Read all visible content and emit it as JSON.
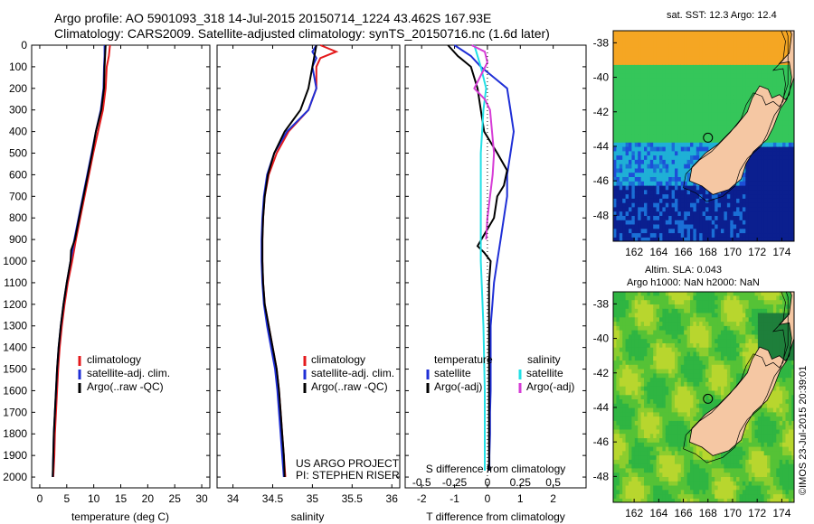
{
  "header": {
    "line1": "Argo profile: AO 5901093_318 14-Jul-2015 20150714_1224 43.462S 167.93E",
    "line2": "Climatology: CARS2009. Satellite-adjusted climatology: synTS_20150716.nc (1.6d later)"
  },
  "colors": {
    "climatology": "#e41a1c",
    "satellite": "#1f2fd6",
    "argo": "#000000",
    "cyan": "#22e0e6",
    "magenta": "#d63cd6"
  },
  "chart_data": [
    {
      "type": "line",
      "name": "temperature",
      "xlabel": "temperature (deg C)",
      "ylim": [
        0,
        2050
      ],
      "xlim": [
        -1.5,
        31.5
      ],
      "xticks": [
        "0",
        "5",
        "10",
        "15",
        "20",
        "25",
        "30"
      ],
      "xtick_values": [
        0,
        5,
        10,
        15,
        20,
        25,
        30
      ],
      "yticks": [
        "0",
        "100",
        "200",
        "300",
        "400",
        "500",
        "600",
        "700",
        "800",
        "900",
        "1000",
        "1100",
        "1200",
        "1300",
        "1400",
        "1500",
        "1600",
        "1700",
        "1800",
        "1900",
        "2000"
      ],
      "legend": {
        "items": [
          "climatology",
          "satellite-adj. clim.",
          "Argo(..raw -QC)"
        ]
      },
      "series": [
        {
          "key": "climatology",
          "color": "#e41a1c",
          "points": [
            [
              13.0,
              0
            ],
            [
              12.8,
              50
            ],
            [
              12.4,
              100
            ],
            [
              12.2,
              200
            ],
            [
              11.7,
              300
            ],
            [
              10.8,
              400
            ],
            [
              9.9,
              500
            ],
            [
              9.1,
              600
            ],
            [
              8.3,
              700
            ],
            [
              7.5,
              800
            ],
            [
              6.7,
              900
            ],
            [
              6.0,
              1000
            ],
            [
              5.2,
              1100
            ],
            [
              4.6,
              1200
            ],
            [
              4.1,
              1300
            ],
            [
              3.7,
              1400
            ],
            [
              3.4,
              1500
            ],
            [
              3.2,
              1600
            ],
            [
              3.0,
              1700
            ],
            [
              2.8,
              1800
            ],
            [
              2.7,
              1900
            ],
            [
              2.5,
              2000
            ]
          ]
        },
        {
          "key": "satellite",
          "color": "#1f2fd6",
          "points": [
            [
              12.0,
              0
            ],
            [
              12.0,
              50
            ],
            [
              11.9,
              100
            ],
            [
              11.8,
              200
            ],
            [
              11.3,
              300
            ],
            [
              10.4,
              400
            ],
            [
              9.6,
              500
            ],
            [
              8.8,
              600
            ],
            [
              8.0,
              700
            ],
            [
              7.2,
              800
            ],
            [
              6.4,
              900
            ],
            [
              5.7,
              1000
            ],
            [
              5.0,
              1100
            ],
            [
              4.4,
              1200
            ],
            [
              3.9,
              1300
            ],
            [
              3.5,
              1400
            ],
            [
              3.2,
              1500
            ],
            [
              3.0,
              1600
            ],
            [
              2.8,
              1700
            ],
            [
              2.6,
              1800
            ],
            [
              2.5,
              1900
            ],
            [
              2.4,
              2000
            ]
          ]
        },
        {
          "key": "argo",
          "color": "#000000",
          "points": [
            [
              12.2,
              0
            ],
            [
              12.1,
              50
            ],
            [
              12.0,
              100
            ],
            [
              11.9,
              200
            ],
            [
              11.4,
              300
            ],
            [
              10.4,
              400
            ],
            [
              9.7,
              500
            ],
            [
              8.9,
              600
            ],
            [
              8.1,
              700
            ],
            [
              7.3,
              800
            ],
            [
              6.5,
              900
            ],
            [
              5.8,
              950
            ],
            [
              5.7,
              1000
            ],
            [
              5.0,
              1100
            ],
            [
              4.4,
              1200
            ],
            [
              3.9,
              1300
            ],
            [
              3.5,
              1400
            ],
            [
              3.2,
              1500
            ],
            [
              3.0,
              1600
            ],
            [
              2.8,
              1700
            ],
            [
              2.6,
              1800
            ],
            [
              2.5,
              1900
            ],
            [
              2.4,
              2000
            ]
          ]
        }
      ]
    },
    {
      "type": "line",
      "name": "salinity",
      "xlabel": "salinity",
      "ylim": [
        0,
        2050
      ],
      "xlim": [
        33.8,
        36.1
      ],
      "xticks": [
        "34",
        "34.5",
        "35",
        "35.5",
        "36"
      ],
      "xtick_values": [
        34,
        34.5,
        35,
        35.5,
        36
      ],
      "legend": {
        "items": [
          "climatology",
          "satellite-adj. clim.",
          "Argo(..raw -QC)"
        ]
      },
      "annotation": [
        "US ARGO PROJECT",
        "PI: STEPHEN RISER"
      ],
      "series": [
        {
          "key": "climatology",
          "color": "#e41a1c",
          "points": [
            [
              35.1,
              0
            ],
            [
              35.3,
              30
            ],
            [
              35.1,
              60
            ],
            [
              35.05,
              100
            ],
            [
              35.05,
              200
            ],
            [
              34.95,
              300
            ],
            [
              34.7,
              400
            ],
            [
              34.55,
              500
            ],
            [
              34.45,
              600
            ],
            [
              34.4,
              700
            ],
            [
              34.38,
              800
            ],
            [
              34.37,
              900
            ],
            [
              34.37,
              1000
            ],
            [
              34.38,
              1100
            ],
            [
              34.4,
              1200
            ],
            [
              34.45,
              1300
            ],
            [
              34.5,
              1400
            ],
            [
              34.55,
              1500
            ],
            [
              34.58,
              1600
            ],
            [
              34.6,
              1700
            ],
            [
              34.62,
              1800
            ],
            [
              34.64,
              1900
            ],
            [
              34.66,
              2000
            ]
          ]
        },
        {
          "key": "satellite",
          "color": "#1f2fd6",
          "points": [
            [
              35.05,
              0
            ],
            [
              35.0,
              30
            ],
            [
              35.05,
              60
            ],
            [
              35.0,
              100
            ],
            [
              35.05,
              200
            ],
            [
              34.95,
              300
            ],
            [
              34.68,
              400
            ],
            [
              34.52,
              500
            ],
            [
              34.43,
              600
            ],
            [
              34.39,
              700
            ],
            [
              34.37,
              800
            ],
            [
              34.36,
              900
            ],
            [
              34.36,
              1000
            ],
            [
              34.37,
              1100
            ],
            [
              34.39,
              1200
            ],
            [
              34.43,
              1300
            ],
            [
              34.48,
              1400
            ],
            [
              34.53,
              1500
            ],
            [
              34.56,
              1600
            ],
            [
              34.58,
              1700
            ],
            [
              34.6,
              1800
            ],
            [
              34.62,
              1900
            ],
            [
              34.64,
              2000
            ]
          ]
        },
        {
          "key": "argo",
          "color": "#000000",
          "points": [
            [
              35.05,
              0
            ],
            [
              35.0,
              100
            ],
            [
              34.95,
              200
            ],
            [
              34.85,
              300
            ],
            [
              34.65,
              400
            ],
            [
              34.52,
              500
            ],
            [
              34.44,
              600
            ],
            [
              34.4,
              700
            ],
            [
              34.38,
              800
            ],
            [
              34.37,
              900
            ],
            [
              34.37,
              1000
            ],
            [
              34.38,
              1100
            ],
            [
              34.4,
              1200
            ],
            [
              34.45,
              1300
            ],
            [
              34.5,
              1400
            ],
            [
              34.55,
              1500
            ],
            [
              34.58,
              1600
            ],
            [
              34.6,
              1700
            ],
            [
              34.62,
              1800
            ],
            [
              34.64,
              1900
            ],
            [
              34.65,
              2000
            ]
          ]
        }
      ]
    },
    {
      "type": "line",
      "name": "difference",
      "xlabel": "T difference from climatology",
      "xlabel2": "S difference from climatology",
      "ylim": [
        0,
        2050
      ],
      "xlim": [
        -2.5,
        3.0
      ],
      "xticks": [
        "-2",
        "-1",
        "0",
        "1",
        "2"
      ],
      "xtick_values": [
        -2,
        -1,
        0,
        1,
        2
      ],
      "sticks": [
        "-0.5",
        "-0.25",
        "0",
        "0.25",
        "0.5"
      ],
      "stick_values": [
        -0.5,
        -0.25,
        0,
        0.25,
        0.5
      ],
      "legend": {
        "temperature_title": "temperature",
        "salinity_title": "salinity",
        "items": [
          "satellite",
          "Argo(-adj)",
          "satellite",
          "Argo(-adj)"
        ]
      },
      "series": [
        {
          "key": "T satellite",
          "color": "#1f2fd6",
          "x_scale": "T",
          "points": [
            [
              -1.0,
              0
            ],
            [
              -0.5,
              50
            ],
            [
              -0.2,
              100
            ],
            [
              0.2,
              150
            ],
            [
              0.6,
              200
            ],
            [
              0.7,
              300
            ],
            [
              0.8,
              400
            ],
            [
              0.7,
              500
            ],
            [
              0.6,
              600
            ],
            [
              0.6,
              700
            ],
            [
              0.5,
              800
            ],
            [
              0.4,
              900
            ],
            [
              0.3,
              1000
            ],
            [
              0.2,
              1100
            ],
            [
              0.15,
              1200
            ],
            [
              0.1,
              1300
            ],
            [
              0.1,
              1400
            ],
            [
              0.1,
              1500
            ],
            [
              0.1,
              1600
            ],
            [
              0.08,
              1700
            ],
            [
              0.08,
              1800
            ],
            [
              0.06,
              1900
            ],
            [
              0.06,
              1970
            ]
          ]
        },
        {
          "key": "T argo",
          "color": "#000000",
          "x_scale": "T",
          "points": [
            [
              -1.2,
              0
            ],
            [
              -0.9,
              50
            ],
            [
              -0.5,
              100
            ],
            [
              -0.3,
              200
            ],
            [
              -0.2,
              300
            ],
            [
              -0.1,
              400
            ],
            [
              0.3,
              500
            ],
            [
              0.6,
              580
            ],
            [
              0.5,
              650
            ],
            [
              0.3,
              700
            ],
            [
              0.2,
              800
            ],
            [
              -0.3,
              930
            ],
            [
              -0.1,
              960
            ],
            [
              0.1,
              1000
            ],
            [
              0.05,
              1100
            ],
            [
              0.05,
              1200
            ],
            [
              0.05,
              1300
            ],
            [
              0.05,
              1400
            ],
            [
              0.05,
              1500
            ],
            [
              0.05,
              1600
            ],
            [
              0.05,
              1700
            ],
            [
              0.05,
              1800
            ],
            [
              0.05,
              1900
            ],
            [
              0.05,
              1970
            ]
          ]
        },
        {
          "key": "S satellite",
          "color": "#22e0e6",
          "x_scale": "S",
          "points": [
            [
              -0.1,
              0
            ],
            [
              -0.05,
              100
            ],
            [
              -0.01,
              200
            ],
            [
              -0.03,
              300
            ],
            [
              -0.05,
              500
            ],
            [
              -0.05,
              800
            ],
            [
              -0.05,
              1000
            ],
            [
              -0.03,
              1300
            ],
            [
              -0.02,
              1600
            ],
            [
              -0.02,
              1970
            ]
          ]
        },
        {
          "key": "S argo",
          "color": "#d63cd6",
          "x_scale": "S",
          "points": [
            [
              -0.12,
              0
            ],
            [
              -0.02,
              30
            ],
            [
              0.0,
              80
            ],
            [
              -0.1,
              200
            ],
            [
              -0.02,
              250
            ],
            [
              0.02,
              300
            ],
            [
              0.05,
              500
            ],
            [
              0.04,
              600
            ],
            [
              0.02,
              700
            ],
            [
              0.0,
              800
            ],
            [
              -0.01,
              900
            ]
          ]
        }
      ]
    },
    {
      "type": "heatmap",
      "name": "sst-map",
      "title": "sat. SST: 12.3 Argo: 12.4",
      "xticks": [
        "162",
        "164",
        "166",
        "168",
        "170",
        "172",
        "174"
      ],
      "xtick_values": [
        162,
        164,
        166,
        168,
        170,
        172,
        174
      ],
      "yticks": [
        "-38",
        "-40",
        "-42",
        "-44",
        "-46",
        "-48"
      ],
      "ytick_values": [
        -38,
        -40,
        -42,
        -44,
        -46,
        -48
      ],
      "xlim": [
        160.3,
        175.0
      ],
      "ylim": [
        -49.5,
        -37.3
      ],
      "marker": [
        168.0,
        -43.5
      ]
    },
    {
      "type": "heatmap",
      "name": "sla-map",
      "title": "Altim. SLA: 0.043",
      "subtitle": "Argo h1000: NaN h2000: NaN",
      "xticks": [
        "162",
        "164",
        "166",
        "168",
        "170",
        "172",
        "174"
      ],
      "xtick_values": [
        162,
        164,
        166,
        168,
        170,
        172,
        174
      ],
      "yticks": [
        "-38",
        "-40",
        "-42",
        "-44",
        "-46",
        "-48"
      ],
      "ytick_values": [
        -38,
        -40,
        -42,
        -44,
        -46,
        -48
      ],
      "xlim": [
        160.3,
        175.0
      ],
      "ylim": [
        -49.5,
        -37.3
      ],
      "marker": [
        168.0,
        -43.5
      ]
    }
  ],
  "footer": {
    "credit": "©IMOS 23-Jul-2015 20:39:01"
  }
}
